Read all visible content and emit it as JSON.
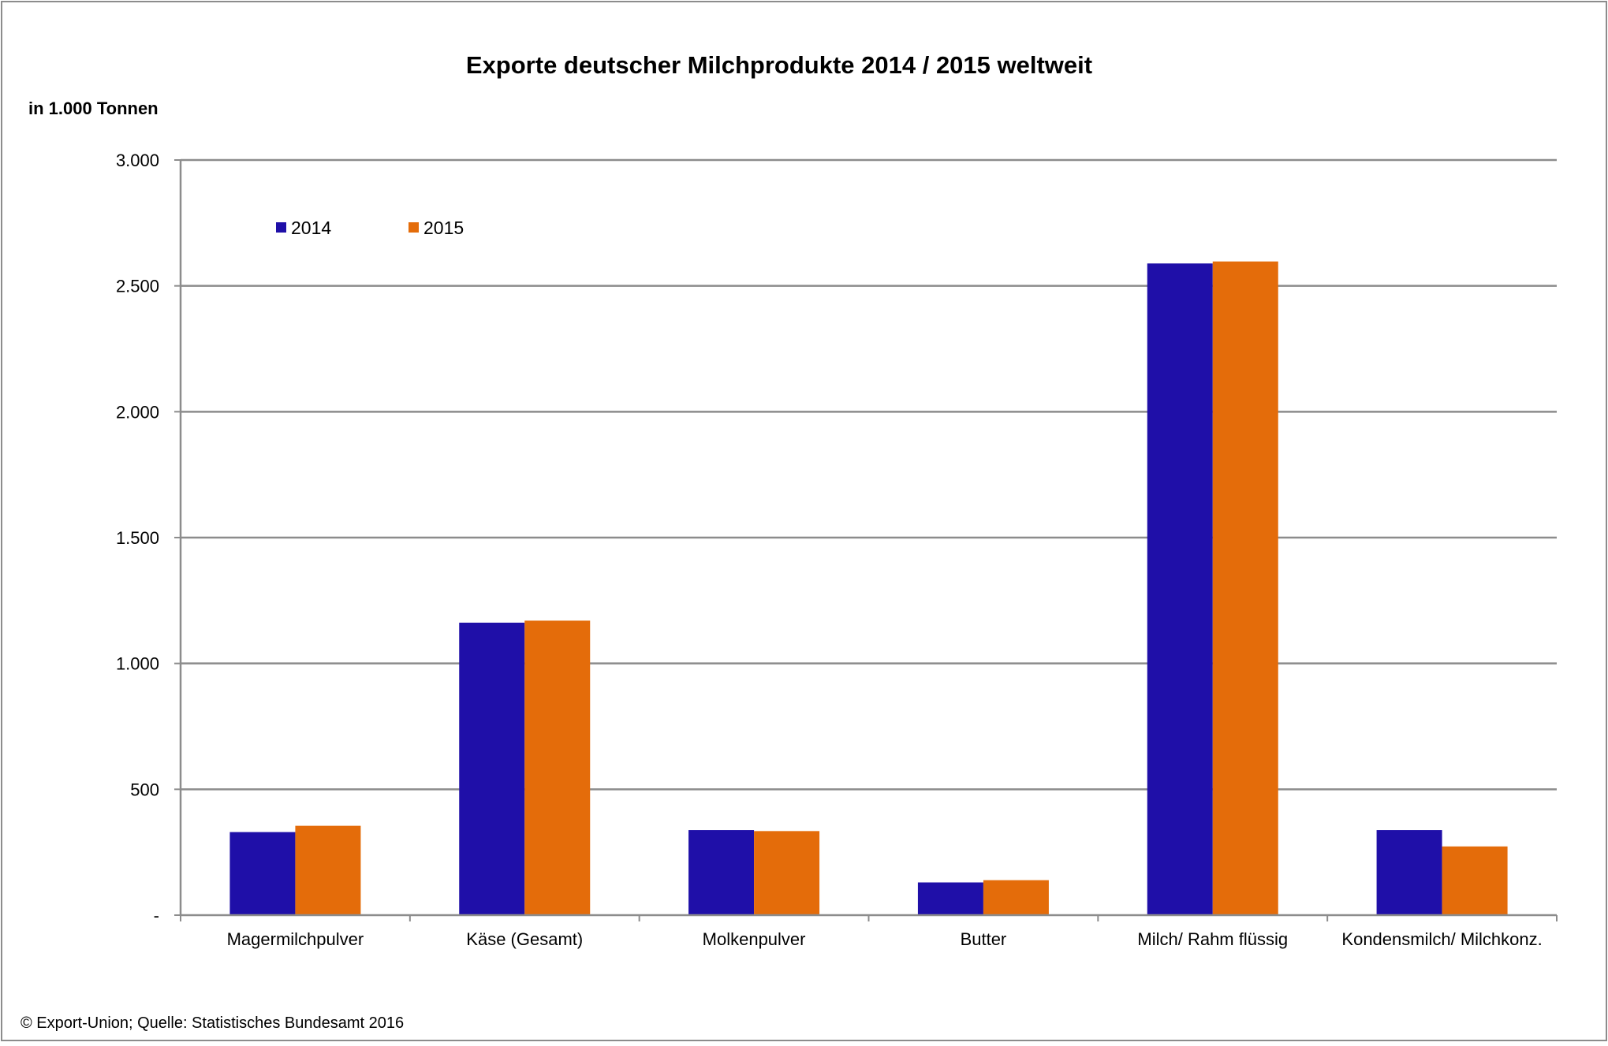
{
  "chart_data": {
    "type": "bar",
    "title": "Exporte deutscher Milchprodukte 2014 / 2015 weltweit",
    "ylabel": "in 1.000 Tonnen",
    "xlabel": "",
    "ylim": [
      0,
      3000
    ],
    "yticks": [
      0,
      500,
      1000,
      1500,
      2000,
      2500,
      3000
    ],
    "ytick_labels": [
      "-",
      "500",
      "1.000",
      "1.500",
      "2.000",
      "2.500",
      "3.000"
    ],
    "grid": true,
    "legend_position": "top-left",
    "categories": [
      "Magermilchpulver",
      "Käse (Gesamt)",
      "Molkenpulver",
      "Butter",
      "Milch/ Rahm flüssig",
      "Kondensmilch/ Milchkonz."
    ],
    "series": [
      {
        "name": "2014",
        "color": "#1f0fa8",
        "values": [
          330,
          1162,
          338,
          130,
          2589,
          338
        ]
      },
      {
        "name": "2015",
        "color": "#e46c0a",
        "values": [
          355,
          1170,
          334,
          139,
          2597,
          273
        ]
      }
    ],
    "source": "© Export-Union; Quelle: Statistisches Bundesamt 2016"
  }
}
